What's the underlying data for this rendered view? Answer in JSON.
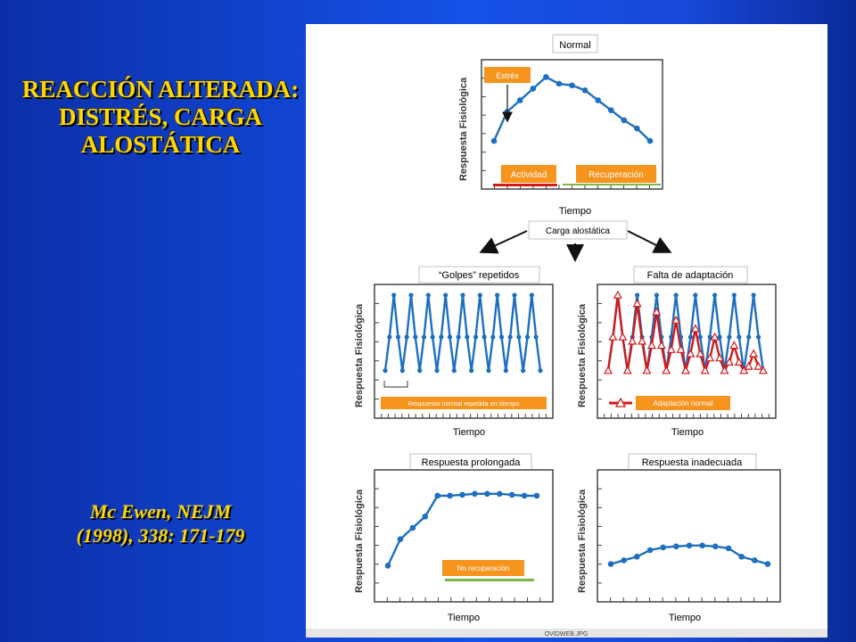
{
  "title": "REACCIÓN ALTERADA: DISTRÉS, CARGA ALOSTÁTICA",
  "citation": {
    "line1": "Mc Ewen,  NEJM",
    "line2": "(1998), 338: 171-179"
  },
  "figure": {
    "top_panel": {
      "title": "Normal",
      "tag_stress": "Estrés",
      "tag_activity": "Actividad",
      "tag_recovery": "Recuperación"
    },
    "arrows_label": "Carga alostática",
    "panel_golpes": {
      "title": "“Golpes”  repetidos",
      "note": "Respuesta  normal repetida en tiempo"
    },
    "panel_falta": {
      "title": "Falta de adaptación",
      "note": "Adaptación normal"
    },
    "panel_prolongada": {
      "title": "Respuesta prolongada",
      "note": "No recuperación"
    },
    "panel_inadecuada": {
      "title": "Respuesta inadecuada"
    },
    "ylabel": "Respuesta Fisiológica",
    "xlabel": "Tiempo",
    "source": "OVIDWEB.JPG",
    "colors": {
      "line": "#1e6fc0",
      "point": "#1e6fc0",
      "red_line": "#d11a1a",
      "tag": "#f7941d",
      "activity_bar": "#d11a1a",
      "recovery_bar": "#7ab648"
    }
  },
  "chart_data": [
    {
      "type": "line",
      "title": "Normal",
      "xlabel": "Tiempo",
      "ylabel": "Respuesta Fisiológica",
      "series": [
        {
          "values": [
            1.5,
            5.0,
            6.4,
            7.8,
            9.2,
            8.4,
            8.2,
            7.6,
            6.4,
            5.2,
            4.0,
            3.0,
            1.5
          ]
        }
      ]
    },
    {
      "type": "line",
      "title": "“Golpes”  repetidos",
      "xlabel": "Tiempo",
      "ylabel": "Respuesta Fisiológica",
      "series": [
        {
          "values": [
            1,
            5,
            10,
            5,
            1,
            5,
            10,
            5,
            1,
            5,
            10,
            5,
            1,
            5,
            10,
            5,
            1,
            5,
            10,
            5,
            1,
            5,
            10,
            5,
            1,
            5,
            10,
            5,
            1,
            5,
            10,
            5,
            1,
            5,
            10,
            5,
            1
          ]
        }
      ]
    },
    {
      "type": "line",
      "title": "Falta de adaptación",
      "xlabel": "Tiempo",
      "ylabel": "Respuesta Fisiológica",
      "series": [
        {
          "values": [
            1,
            5,
            10,
            5,
            1,
            5,
            10,
            5,
            1,
            5,
            10,
            5,
            1,
            5,
            10,
            5,
            1,
            5,
            10,
            5,
            1,
            5,
            10,
            5,
            1,
            5,
            10,
            5,
            1,
            5,
            10,
            5,
            1
          ]
        },
        {
          "name": "Adaptación normal",
          "values": [
            1,
            5,
            10,
            5,
            1,
            4.5,
            9,
            4.5,
            1,
            4,
            8,
            4,
            1,
            3.5,
            7,
            3.5,
            1,
            3,
            6,
            3,
            1,
            2.5,
            5,
            2.5,
            1,
            2,
            4,
            2,
            1,
            1.5,
            3,
            1.5,
            1
          ]
        }
      ]
    },
    {
      "type": "line",
      "title": "Respuesta prolongada",
      "xlabel": "Tiempo",
      "ylabel": "Respuesta Fisiológica",
      "series": [
        {
          "values": [
            1.0,
            3.8,
            5.0,
            6.2,
            8.4,
            8.4,
            8.5,
            8.6,
            8.6,
            8.6,
            8.5,
            8.4,
            8.4
          ]
        }
      ]
    },
    {
      "type": "line",
      "title": "Respuesta inadecuada",
      "xlabel": "Tiempo",
      "ylabel": "Respuesta Fisiológica",
      "series": [
        {
          "values": [
            1.0,
            1.4,
            1.8,
            2.5,
            2.8,
            2.9,
            3.0,
            3.0,
            2.9,
            2.7,
            1.8,
            1.4,
            1.0
          ]
        }
      ]
    }
  ]
}
